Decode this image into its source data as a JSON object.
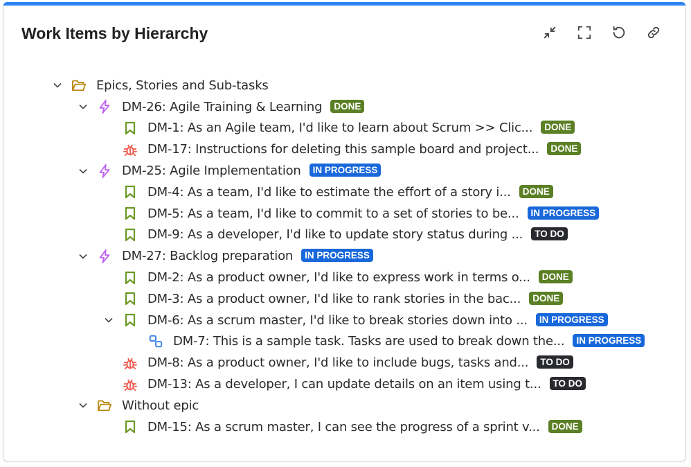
{
  "header": {
    "title": "Work Items by Hierarchy",
    "tools": [
      {
        "name": "collapse-icon",
        "label": "Collapse"
      },
      {
        "name": "fullscreen-icon",
        "label": "Fullscreen"
      },
      {
        "name": "refresh-icon",
        "label": "Refresh"
      },
      {
        "name": "link-icon",
        "label": "Copy link"
      }
    ]
  },
  "colors": {
    "accent": "#2d84f5",
    "done": "#5b7f24",
    "in_progress": "#1868db",
    "to_do": "#292a2e",
    "folder": "#b8860b",
    "epic": "#bf63f3",
    "story": "#6a9a23",
    "bug": "#f15b50",
    "subtask": "#357de8"
  },
  "tree": [
    {
      "level": 0,
      "expandable": true,
      "icon": "folder",
      "text": "Epics, Stories and Sub-tasks"
    },
    {
      "level": 1,
      "expandable": true,
      "icon": "epic",
      "text": "DM-26: Agile Training & Learning",
      "status": "DONE"
    },
    {
      "level": 2,
      "expandable": false,
      "icon": "story",
      "text": "DM-1: As an Agile team, I'd like to learn about Scrum >> Clic...",
      "status": "DONE"
    },
    {
      "level": 2,
      "expandable": false,
      "icon": "bug",
      "text": "DM-17: Instructions for deleting this sample board and project...",
      "status": "DONE"
    },
    {
      "level": 1,
      "expandable": true,
      "icon": "epic",
      "text": "DM-25: Agile Implementation",
      "status": "IN PROGRESS"
    },
    {
      "level": 2,
      "expandable": false,
      "icon": "story",
      "text": "DM-4: As a team, I'd like to estimate the effort of a story i...",
      "status": "DONE"
    },
    {
      "level": 2,
      "expandable": false,
      "icon": "story",
      "text": "DM-5: As a team, I'd like to commit to a set of stories to be...",
      "status": "IN PROGRESS"
    },
    {
      "level": 2,
      "expandable": false,
      "icon": "story",
      "text": "DM-9: As a developer, I'd like to update story status during ...",
      "status": "TO DO"
    },
    {
      "level": 1,
      "expandable": true,
      "icon": "epic",
      "text": "DM-27: Backlog preparation",
      "status": "IN PROGRESS"
    },
    {
      "level": 2,
      "expandable": false,
      "icon": "story",
      "text": "DM-2: As a product owner, I'd like to express work in terms o...",
      "status": "DONE"
    },
    {
      "level": 2,
      "expandable": false,
      "icon": "story",
      "text": "DM-3: As a product owner, I'd like to rank stories in the bac...",
      "status": "DONE"
    },
    {
      "level": 2,
      "expandable": true,
      "icon": "story",
      "text": "DM-6: As a scrum master, I'd like to break stories down into ...",
      "status": "IN PROGRESS"
    },
    {
      "level": 3,
      "expandable": false,
      "icon": "subtask",
      "text": "DM-7: This is a sample task. Tasks are used to break down the...",
      "status": "IN PROGRESS"
    },
    {
      "level": 2,
      "expandable": false,
      "icon": "bug",
      "text": "DM-8: As a product owner, I'd like to include bugs, tasks and...",
      "status": "TO DO"
    },
    {
      "level": 2,
      "expandable": false,
      "icon": "bug",
      "text": "DM-13: As a developer, I can update details on an item using t...",
      "status": "TO DO"
    },
    {
      "level": 1,
      "expandable": true,
      "icon": "folder",
      "text": "Without epic"
    },
    {
      "level": 2,
      "expandable": false,
      "icon": "story",
      "text": "DM-15: As a scrum master, I can see the progress of a sprint v...",
      "status": "DONE"
    }
  ]
}
